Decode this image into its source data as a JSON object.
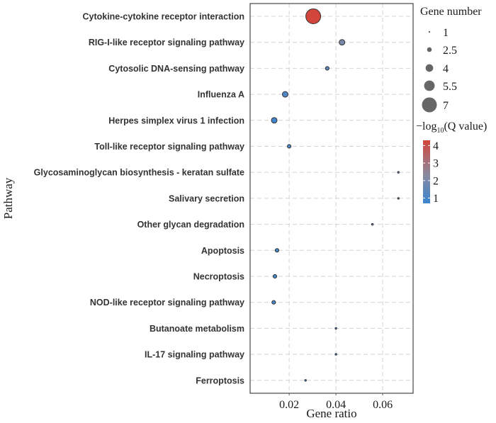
{
  "chart_data": {
    "type": "scatter",
    "subtype": "bubble",
    "title": "",
    "xlabel": "Gene ratio",
    "ylabel": "Pathway",
    "xlim": [
      0.0033,
      0.073
    ],
    "xticks": [
      0.02,
      0.04,
      0.06
    ],
    "xtick_labels": [
      "0.02",
      "0.04",
      "0.06"
    ],
    "grid": true,
    "grid_style": "dashed",
    "categories": [
      "Cytokine-cytokine receptor interaction",
      "RIG-I-like receptor signaling pathway",
      "Cytosolic DNA-sensing pathway",
      "Influenza A",
      "Herpes simplex virus 1 infection",
      "Toll-like receptor signaling pathway",
      "Glycosaminoglycan biosynthesis - keratan sulfate",
      "Salivary secretion",
      "Other glycan degradation",
      "Apoptosis",
      "Necroptosis",
      "NOD-like receptor signaling pathway",
      "Butanoate metabolism",
      "IL-17 signaling pathway",
      "Ferroptosis"
    ],
    "points": [
      {
        "pathway": "Cytokine-cytokine receptor interaction",
        "gene_ratio": 0.0303,
        "gene_number": 7,
        "neg_log10_q": 4.3
      },
      {
        "pathway": "RIG-I-like receptor signaling pathway",
        "gene_ratio": 0.0426,
        "gene_number": 3,
        "neg_log10_q": 2.0
      },
      {
        "pathway": "Cytosolic DNA-sensing pathway",
        "gene_ratio": 0.0363,
        "gene_number": 2,
        "neg_log10_q": 1.3
      },
      {
        "pathway": "Influenza A",
        "gene_ratio": 0.0183,
        "gene_number": 3,
        "neg_log10_q": 1.1
      },
      {
        "pathway": "Herpes simplex virus 1 infection",
        "gene_ratio": 0.0136,
        "gene_number": 3,
        "neg_log10_q": 0.8
      },
      {
        "pathway": "Toll-like receptor signaling pathway",
        "gene_ratio": 0.02,
        "gene_number": 2,
        "neg_log10_q": 1.0
      },
      {
        "pathway": "Glycosaminoglycan biosynthesis - keratan sulfate",
        "gene_ratio": 0.0667,
        "gene_number": 1,
        "neg_log10_q": 1.0
      },
      {
        "pathway": "Salivary secretion",
        "gene_ratio": 0.0667,
        "gene_number": 1,
        "neg_log10_q": 1.0
      },
      {
        "pathway": "Other glycan degradation",
        "gene_ratio": 0.0556,
        "gene_number": 1,
        "neg_log10_q": 1.0
      },
      {
        "pathway": "Apoptosis",
        "gene_ratio": 0.0148,
        "gene_number": 2,
        "neg_log10_q": 0.9
      },
      {
        "pathway": "Necroptosis",
        "gene_ratio": 0.0139,
        "gene_number": 2,
        "neg_log10_q": 0.9
      },
      {
        "pathway": "NOD-like receptor signaling pathway",
        "gene_ratio": 0.0134,
        "gene_number": 2,
        "neg_log10_q": 0.9
      },
      {
        "pathway": "Butanoate metabolism",
        "gene_ratio": 0.04,
        "gene_number": 1,
        "neg_log10_q": 0.9
      },
      {
        "pathway": "IL-17 signaling pathway",
        "gene_ratio": 0.04,
        "gene_number": 1,
        "neg_log10_q": 0.9
      },
      {
        "pathway": "Ferroptosis",
        "gene_ratio": 0.027,
        "gene_number": 1,
        "neg_log10_q": 0.8
      }
    ],
    "size_legend": {
      "title": "Gene number",
      "values": [
        1,
        2.5,
        4,
        5.5,
        7
      ],
      "labels": [
        "1",
        "2.5",
        "4",
        "5.5",
        "7"
      ],
      "placement": "right-top"
    },
    "color_legend": {
      "title_prefix": "−log",
      "title_subscript": "10",
      "title_suffix": "(Q value)",
      "ticks": [
        4,
        3,
        2,
        1
      ],
      "tick_labels": [
        "4",
        "3",
        "2",
        "1"
      ],
      "range": [
        0.7,
        4.3
      ],
      "low_color": "#3a86d0",
      "mid_color": "#8a8aa0",
      "high_color": "#d2453b",
      "placement": "right-middle"
    },
    "legend_marker_color": "#666666",
    "point_stroke": "#333333"
  }
}
